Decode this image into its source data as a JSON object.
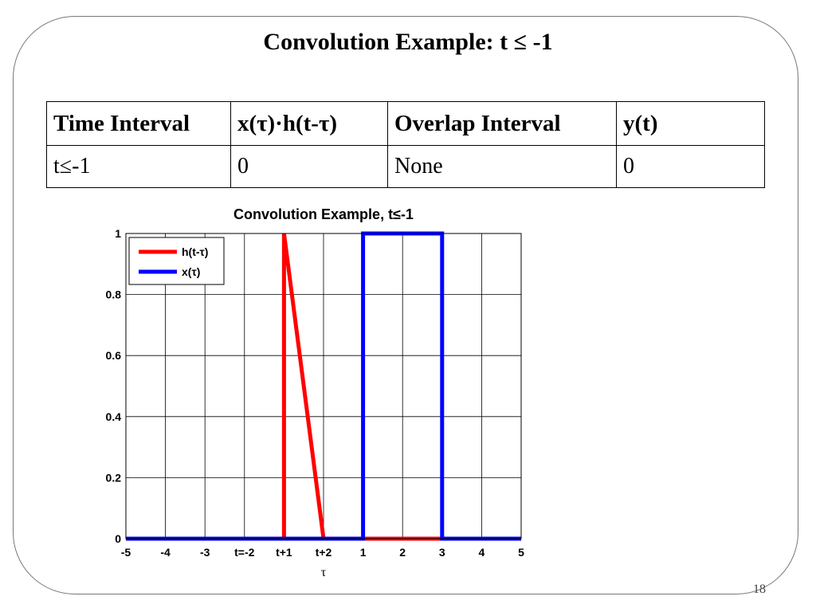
{
  "slide": {
    "title": "Convolution Example: t ≤ -1",
    "page_number": "18"
  },
  "table": {
    "headers": [
      "Time Interval",
      "x(τ)·h(t-τ)",
      "Overlap Interval",
      "y(t)"
    ],
    "rows": [
      [
        "t≤-1",
        "0",
        "None",
        "0"
      ]
    ]
  },
  "chart_data": {
    "type": "line",
    "title": "Convolution Example, t≤-1",
    "xlabel": "τ",
    "ylabel": "",
    "xlim": [
      -5,
      5
    ],
    "ylim": [
      0,
      1
    ],
    "x_ticks": [
      -5,
      -4,
      -3,
      -2,
      -1,
      0,
      1,
      2,
      3,
      4,
      5
    ],
    "x_tick_labels": [
      "-5",
      "-4",
      "-3",
      "t=-2",
      "t+1",
      "t+2",
      "1",
      "2",
      "3",
      "4",
      "5"
    ],
    "y_ticks": [
      0,
      0.2,
      0.4,
      0.6,
      0.8,
      1
    ],
    "y_tick_labels": [
      "0",
      "0.2",
      "0.4",
      "0.6",
      "0.8",
      "1"
    ],
    "grid": true,
    "legend_position": "top-left",
    "series": [
      {
        "name": "h(t-τ)",
        "color": "#ff0000",
        "x": [
          -5,
          -1,
          -1,
          0,
          5
        ],
        "y": [
          0,
          0,
          1,
          0,
          0
        ]
      },
      {
        "name": "x(τ)",
        "color": "#0000ff",
        "x": [
          -5,
          1,
          1,
          3,
          3,
          5
        ],
        "y": [
          0,
          0,
          1,
          1,
          0,
          0
        ]
      }
    ]
  }
}
